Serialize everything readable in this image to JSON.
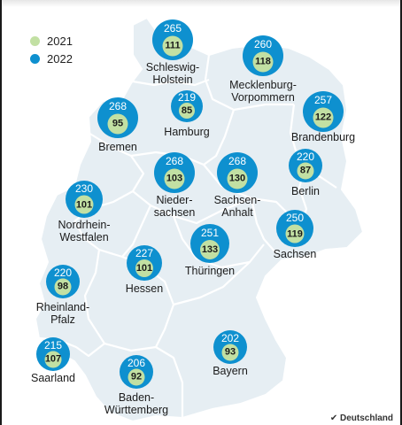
{
  "legend": [
    {
      "label": "2021",
      "color": "#c2e0a3"
    },
    {
      "label": "2022",
      "color": "#0e90cf"
    }
  ],
  "states": [
    {
      "id": "schleswig-holstein",
      "name": "Schleswig-\nHolstein",
      "v2022": "265",
      "v2021": "111"
    },
    {
      "id": "mecklenburg-vorpommern",
      "name": "Mecklenburg-\nVorpommern",
      "v2022": "260",
      "v2021": "118"
    },
    {
      "id": "hamburg",
      "name": "Hamburg",
      "v2022": "219",
      "v2021": "85"
    },
    {
      "id": "bremen",
      "name": "Bremen",
      "v2022": "268",
      "v2021": "95"
    },
    {
      "id": "brandenburg",
      "name": "Brandenburg",
      "v2022": "257",
      "v2021": "122"
    },
    {
      "id": "niedersachsen",
      "name": "Nieder-\nsachsen",
      "v2022": "268",
      "v2021": "103"
    },
    {
      "id": "sachsen-anhalt",
      "name": "Sachsen-\nAnhalt",
      "v2022": "268",
      "v2021": "130"
    },
    {
      "id": "berlin",
      "name": "Berlin",
      "v2022": "220",
      "v2021": "87"
    },
    {
      "id": "nordrhein-westfalen",
      "name": "Nordrhein-\nWestfalen",
      "v2022": "230",
      "v2021": "101"
    },
    {
      "id": "sachsen",
      "name": "Sachsen",
      "v2022": "250",
      "v2021": "119"
    },
    {
      "id": "thueringen",
      "name": "Thüringen",
      "v2022": "251",
      "v2021": "133"
    },
    {
      "id": "hessen",
      "name": "Hessen",
      "v2022": "227",
      "v2021": "101"
    },
    {
      "id": "rheinland-pfalz",
      "name": "Rheinland-\nPfalz",
      "v2022": "220",
      "v2021": "98"
    },
    {
      "id": "saarland",
      "name": "Saarland",
      "v2022": "215",
      "v2021": "107"
    },
    {
      "id": "bayern",
      "name": "Bayern",
      "v2022": "202",
      "v2021": "93"
    },
    {
      "id": "baden-wuerttemberg",
      "name": "Baden-\nWürttemberg",
      "v2022": "206",
      "v2021": "92"
    }
  ],
  "colors": {
    "land": "#e6eef3",
    "border": "#ffffff",
    "circle_2022": "#0e90cf",
    "circle_2021": "#c2e0a3"
  },
  "logo_text": "Deutschland"
}
